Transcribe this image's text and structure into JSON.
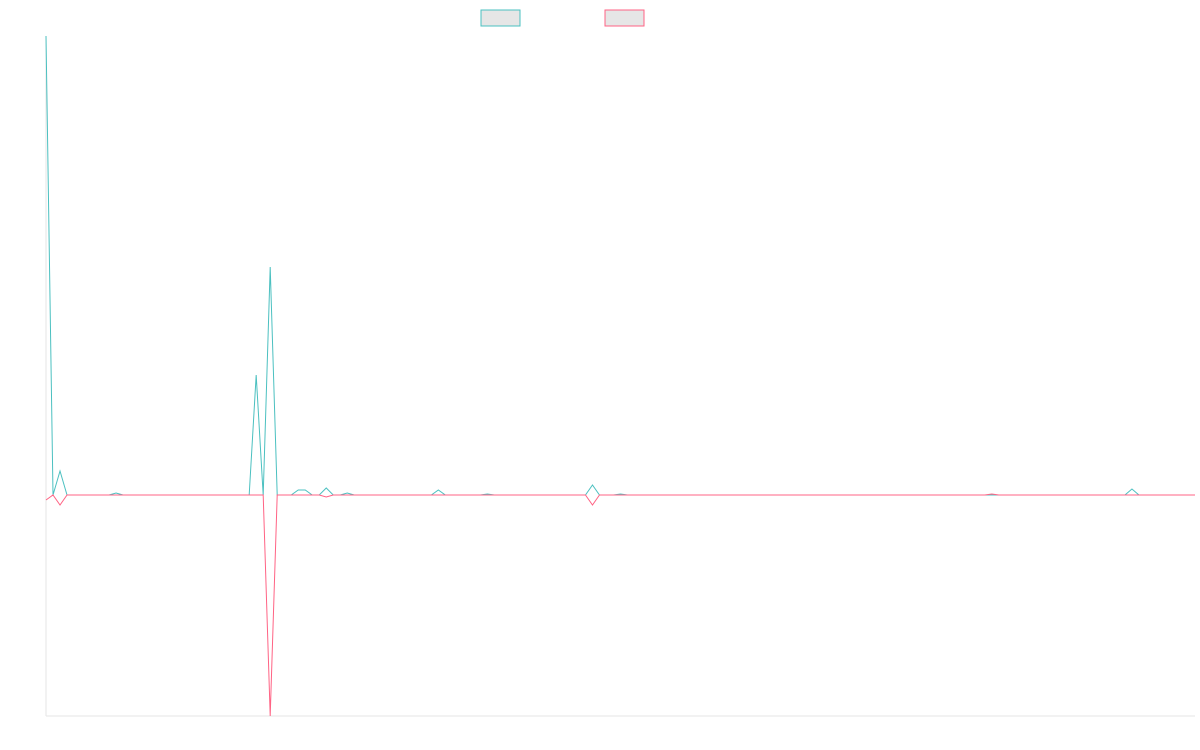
{
  "chart_data": {
    "type": "line",
    "ylim": [
      -221,
      459
    ],
    "series": [
      {
        "color": "#4bc0c0",
        "values": [
          459,
          0,
          24,
          0,
          0,
          0,
          0,
          0,
          0,
          0,
          2,
          0,
          0,
          0,
          0,
          0,
          0,
          0,
          0,
          0,
          0,
          0,
          0,
          0,
          0,
          0,
          0,
          0,
          0,
          0,
          120,
          0,
          228,
          0,
          0,
          0,
          5,
          5,
          0,
          0,
          7,
          0,
          0,
          2,
          0,
          0,
          0,
          0,
          0,
          0,
          0,
          0,
          0,
          0,
          0,
          0,
          5,
          0,
          0,
          0,
          0,
          0,
          0,
          1,
          0,
          0,
          0,
          0,
          0,
          0,
          0,
          0,
          0,
          0,
          0,
          0,
          0,
          0,
          10,
          0,
          0,
          0,
          1,
          0,
          0,
          0,
          0,
          0,
          0,
          0,
          0,
          0,
          0,
          0,
          0,
          0,
          0,
          0,
          0,
          0,
          0,
          0,
          0,
          0,
          0,
          0,
          0,
          0,
          0,
          0,
          0,
          0,
          0,
          0,
          0,
          0,
          0,
          0,
          0,
          0,
          0,
          0,
          0,
          0,
          0,
          0,
          0,
          0,
          0,
          0,
          0,
          0,
          0,
          0,
          0,
          0,
          0,
          0,
          0,
          0,
          0,
          0,
          0,
          0,
          0,
          0,
          0,
          0,
          0,
          0,
          0,
          0,
          0,
          0,
          0,
          6,
          0,
          0,
          0,
          0,
          0,
          0,
          0,
          0,
          0
        ]
      },
      {
        "color": "#ff6384",
        "values": [
          -5,
          0,
          -10,
          0,
          0,
          0,
          0,
          0,
          0,
          0,
          0,
          0,
          0,
          0,
          0,
          0,
          0,
          0,
          0,
          0,
          0,
          0,
          0,
          0,
          0,
          0,
          0,
          0,
          0,
          0,
          0,
          0,
          -221,
          0,
          0,
          0,
          0,
          0,
          0,
          0,
          -2,
          0,
          0,
          0,
          0,
          0,
          0,
          0,
          0,
          0,
          0,
          0,
          0,
          0,
          0,
          0,
          0,
          0,
          0,
          0,
          0,
          0,
          0,
          0,
          0,
          0,
          0,
          0,
          0,
          0,
          0,
          0,
          0,
          0,
          0,
          0,
          0,
          0,
          -10,
          0,
          0,
          0,
          0,
          0,
          0,
          0,
          0,
          0,
          0,
          0,
          0,
          0,
          0,
          0,
          0,
          0,
          0,
          0,
          0,
          0,
          0,
          0,
          0,
          0,
          0,
          0,
          0,
          0,
          0,
          0,
          0,
          0,
          0,
          0,
          0,
          0,
          0,
          0,
          0,
          0,
          0,
          0,
          0,
          0,
          0,
          0,
          0,
          0,
          0,
          0,
          0,
          0,
          0,
          0,
          0,
          1,
          0,
          0,
          0,
          0,
          0,
          0,
          0,
          0,
          0,
          0,
          0,
          0,
          0,
          0,
          0,
          0,
          0,
          0,
          0,
          0,
          0,
          0,
          0,
          0,
          0,
          0,
          0,
          0,
          0
        ]
      }
    ]
  }
}
